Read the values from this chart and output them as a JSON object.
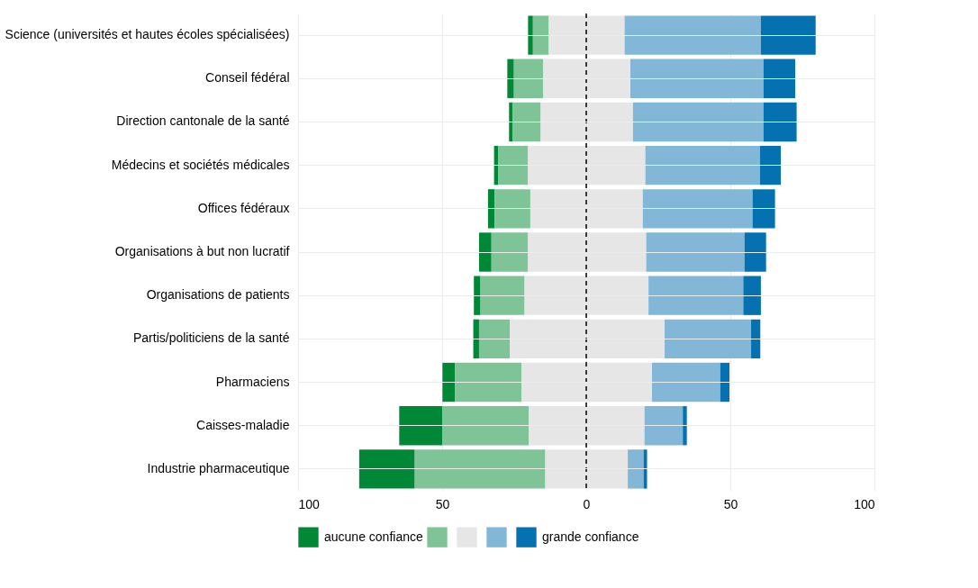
{
  "chart_data": {
    "type": "bar",
    "orientation": "horizontal",
    "categories": [
      "Science (universités et hautes écoles spécialisées)",
      "Conseil fédéral",
      "Direction cantonale de la santé",
      "Médecins et sociétés médicales",
      "Offices fédéraux",
      "Organisations à but non lucratif",
      "Organisations de patients",
      "Partis/politiciens de la santé",
      "Pharmaciens",
      "Caisses-maladie",
      "Industrie pharmaceutique"
    ],
    "series": [
      {
        "name": "aucune confiance",
        "color": "#008837",
        "values": [
          1.7,
          2.3,
          1.2,
          1.4,
          2.3,
          4.3,
          2.3,
          2.0,
          4.3,
          15.0,
          19.3
        ],
        "base": [
          -20.2,
          -27.4,
          -26.8,
          -32.0,
          -34.1,
          -37.2,
          -39.0,
          -39.2,
          -49.9,
          -64.9,
          -78.8
        ]
      },
      {
        "color": "#7fc497",
        "values": [
          5.5,
          10.1,
          9.8,
          10.4,
          12.4,
          12.7,
          15.3,
          10.7,
          23.1,
          30.0,
          45.3
        ],
        "base": [
          -18.5,
          -25.1,
          -25.6,
          -30.6,
          -31.8,
          -32.9,
          -36.7,
          -37.2,
          -45.6,
          -49.9,
          -59.5
        ]
      },
      {
        "color": "#e6e6e6",
        "values": [
          26.3,
          30.3,
          32.0,
          40.7,
          39.0,
          41.0,
          43.0,
          53.7,
          45.3,
          40.1,
          28.6
        ],
        "base": [
          -13.0,
          -15.0,
          -15.8,
          -20.2,
          -19.4,
          -20.2,
          -21.4,
          -26.5,
          -22.5,
          -19.9,
          -14.2
        ]
      },
      {
        "color": "#82b7d8",
        "values": [
          47.3,
          46.2,
          45.3,
          39.8,
          38.1,
          34.1,
          32.9,
          30.0,
          23.7,
          13.3,
          5.5
        ],
        "base": [
          13.3,
          15.3,
          16.2,
          20.5,
          19.6,
          20.8,
          21.6,
          27.2,
          22.8,
          20.2,
          14.4
        ]
      },
      {
        "name": "grande confiance",
        "color": "#0571b0",
        "values": [
          19.0,
          11.0,
          11.5,
          7.2,
          7.8,
          7.5,
          6.1,
          3.2,
          3.2,
          1.4,
          1.2
        ],
        "base": [
          60.6,
          61.5,
          61.5,
          60.3,
          57.7,
          54.9,
          54.5,
          57.2,
          46.5,
          33.5,
          19.9
        ]
      }
    ],
    "xlim": [
      -100,
      100
    ],
    "xticks": [
      {
        "value": -100,
        "label": "100"
      },
      {
        "value": -50,
        "label": "50"
      },
      0,
      50,
      100
    ],
    "ref_lines": [
      {
        "axis": "x",
        "value": 0,
        "color": "#000000",
        "line_style": "dashed"
      }
    ],
    "grid": true,
    "legend": "bottom"
  }
}
